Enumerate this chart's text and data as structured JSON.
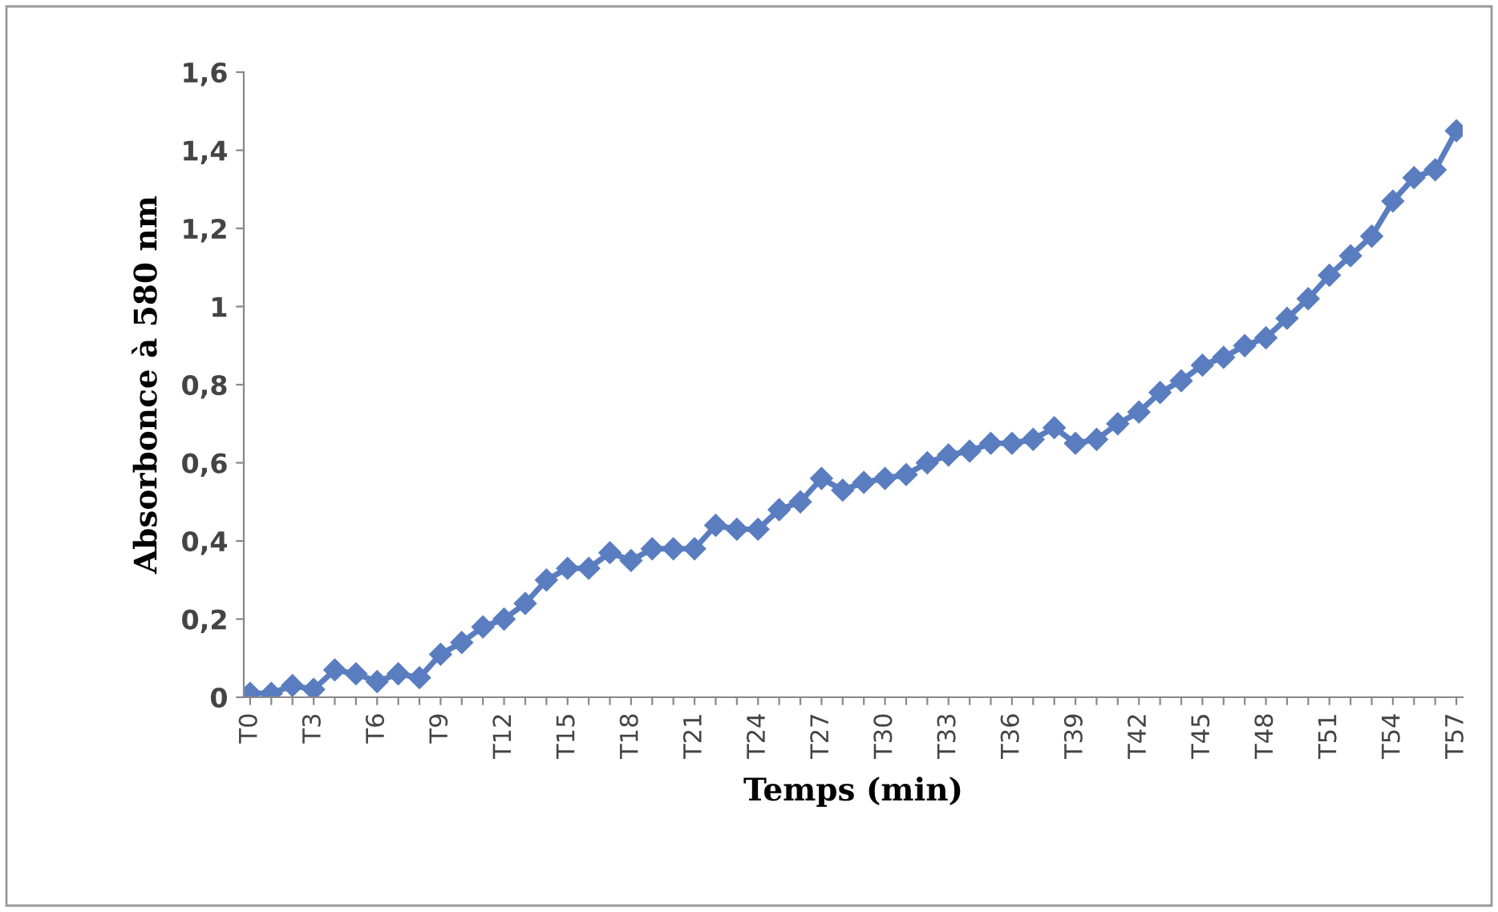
{
  "chart_data": {
    "type": "line",
    "xlabel": "Temps (min)",
    "ylabel": "Absorbonce à 580 nm",
    "categories": [
      "T0",
      null,
      null,
      "T3",
      null,
      null,
      "T6",
      null,
      null,
      "T9",
      null,
      null,
      "T12",
      null,
      null,
      "T15",
      null,
      null,
      "T18",
      null,
      null,
      "T21",
      null,
      null,
      "T24",
      null,
      null,
      "T27",
      null,
      null,
      "T30",
      null,
      null,
      "T33",
      null,
      null,
      "T36",
      null,
      null,
      "T39",
      null,
      null,
      "T42",
      null,
      null,
      "T45",
      null,
      null,
      "T48",
      null,
      null,
      "T51",
      null,
      null,
      "T54",
      null,
      null,
      "T57"
    ],
    "series": [
      {
        "color": "#5a7dc0",
        "values": [
          0.01,
          0.01,
          0.03,
          0.02,
          0.07,
          0.06,
          0.04,
          0.06,
          0.05,
          0.11,
          0.14,
          0.18,
          0.2,
          0.24,
          0.3,
          0.33,
          0.33,
          0.37,
          0.35,
          0.38,
          0.38,
          0.38,
          0.44,
          0.43,
          0.43,
          0.48,
          0.5,
          0.56,
          0.53,
          0.55,
          0.56,
          0.57,
          0.6,
          0.62,
          0.63,
          0.65,
          0.65,
          0.66,
          0.69,
          0.65,
          0.66,
          0.7,
          0.73,
          0.78,
          0.81,
          0.85,
          0.87,
          0.9,
          0.92,
          0.97,
          1.02,
          1.08,
          1.13,
          1.18,
          1.27,
          1.33,
          1.35,
          1.45
        ]
      }
    ],
    "ylim": [
      0,
      1.6
    ],
    "yticks": [
      0,
      {
        "value": 0.2,
        "label": "0,2"
      },
      {
        "value": 0.4,
        "label": "0,4"
      },
      {
        "value": 0.6,
        "label": "0,6"
      },
      {
        "value": 0.8,
        "label": "0,8"
      },
      1,
      {
        "value": 1.2,
        "label": "1,2"
      },
      {
        "value": 1.4,
        "label": "1,4"
      },
      {
        "value": 1.6,
        "label": "1,6"
      }
    ],
    "marker": "diamond",
    "line_style": "solid",
    "grid": false,
    "legend": false
  }
}
